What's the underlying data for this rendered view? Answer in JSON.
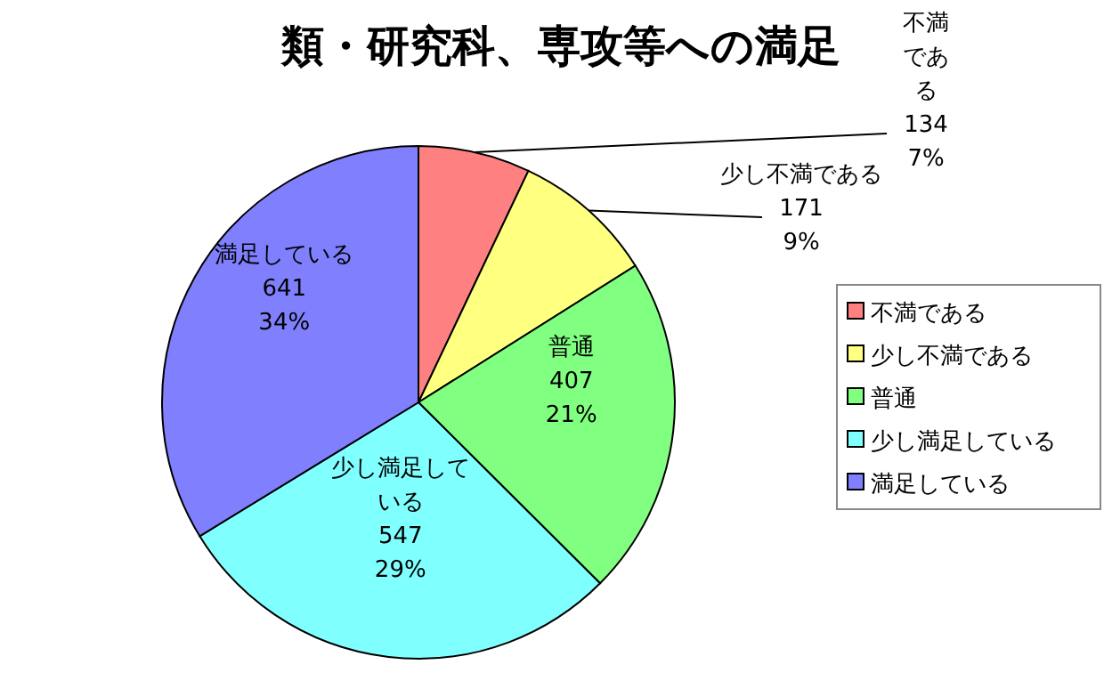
{
  "chart_data": {
    "type": "pie",
    "title": "類・研究科、専攻等への満足",
    "categories": [
      "不満である",
      "少し不満である",
      "普通",
      "少し満足している",
      "満足している"
    ],
    "values": [
      134,
      171,
      407,
      547,
      641
    ],
    "value_labels": [
      "134 7%",
      "171 9%",
      "407 21%",
      "547 29%",
      "641 34%"
    ],
    "colors": [
      "#ff8080",
      "#ffff80",
      "#80ff80",
      "#80ffff",
      "#8080ff"
    ],
    "legend": "right"
  }
}
